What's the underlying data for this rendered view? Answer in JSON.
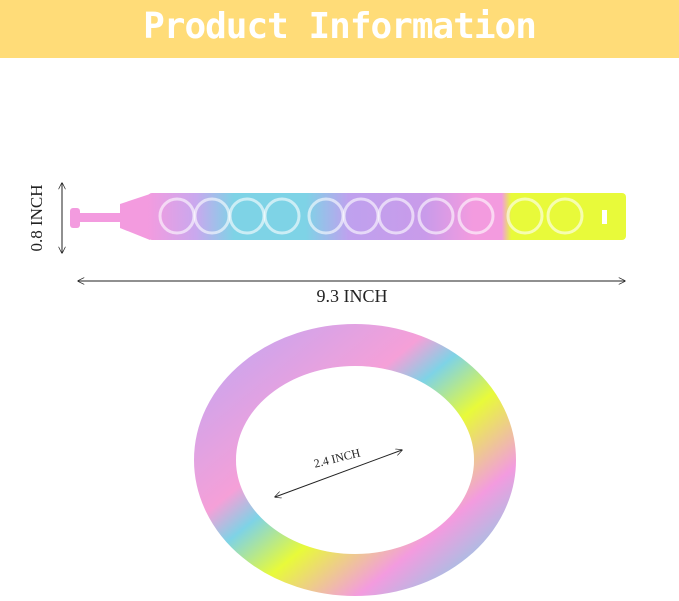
{
  "banner": {
    "title": "Product Information",
    "color": "#FFDC78"
  },
  "dimensions": {
    "height": "0.8 INCH",
    "length": "9.3 INCH",
    "diameter": "2.4 INCH"
  },
  "colors": {
    "pink": "#F39BDF",
    "blue": "#7ED3E6",
    "purple": "#BFA1EE",
    "yellow": "#E8FA3A"
  }
}
